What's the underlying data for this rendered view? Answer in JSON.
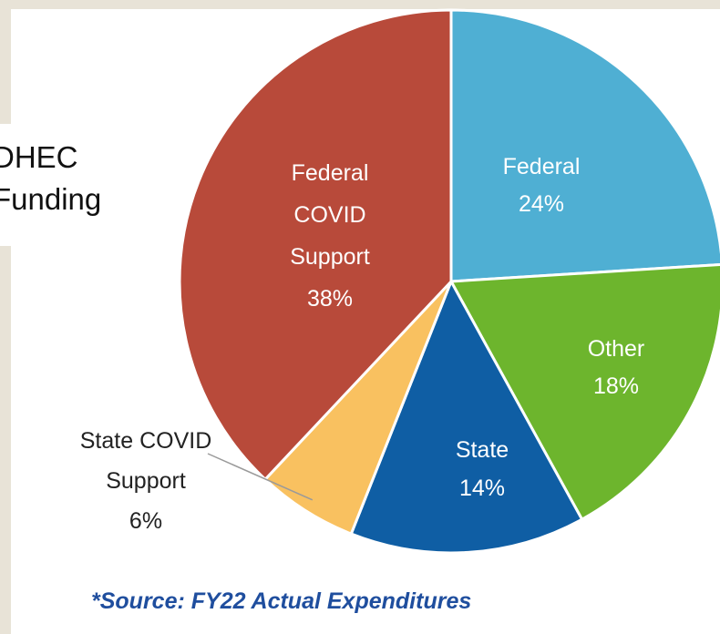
{
  "side_title": [
    "DHEC",
    "Funding"
  ],
  "source_note": "*Source: FY22 Actual Expenditures",
  "colors": {
    "federal": "#4fafd3",
    "other": "#6db52d",
    "state": "#0f5ea4",
    "state_covid": "#f9c160",
    "federal_covid": "#b84a3a"
  },
  "chart_data": {
    "type": "pie",
    "title": "",
    "slices": [
      {
        "key": "federal",
        "label_lines": [
          "Federal",
          "24%"
        ],
        "value": 24
      },
      {
        "key": "other",
        "label_lines": [
          "Other",
          "18%"
        ],
        "value": 18
      },
      {
        "key": "state",
        "label_lines": [
          "State",
          "14%"
        ],
        "value": 14
      },
      {
        "key": "state_covid",
        "label_lines": [
          "State COVID",
          "Support",
          "6%"
        ],
        "value": 6
      },
      {
        "key": "federal_covid",
        "label_lines": [
          "Federal",
          "COVID",
          "Support",
          "38%"
        ],
        "value": 38
      }
    ]
  }
}
